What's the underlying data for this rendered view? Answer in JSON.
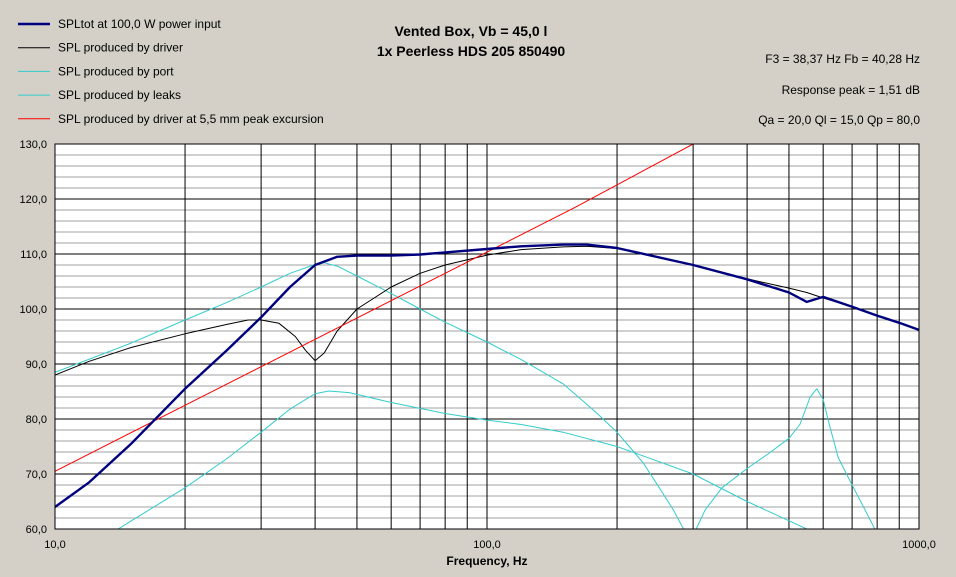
{
  "chart_data": {
    "type": "line",
    "title": "Vented Box, Vb = 45,0 l",
    "subtitle": "1x Peerless HDS 205 850490",
    "xlabel": "Frequency, Hz",
    "ylabel": "",
    "x_scale": "log",
    "xlim": [
      10,
      1000
    ],
    "ylim": [
      60,
      130
    ],
    "x_ticks": [
      {
        "value": 10,
        "label": "10,0"
      },
      {
        "value": 100,
        "label": "100,0"
      },
      {
        "value": 1000,
        "label": "1000,0"
      }
    ],
    "y_ticks": [
      {
        "value": 60,
        "label": "60,0"
      },
      {
        "value": 70,
        "label": "70,0"
      },
      {
        "value": 80,
        "label": "80,0"
      },
      {
        "value": 90,
        "label": "90,0"
      },
      {
        "value": 100,
        "label": "100,0"
      },
      {
        "value": 110,
        "label": "110,0"
      },
      {
        "value": 120,
        "label": "120,0"
      },
      {
        "value": 130,
        "label": "130,0"
      }
    ],
    "grid": true,
    "legend_position": "top-left",
    "info": [
      "F3 = 38,37 Hz  Fb = 40,28 Hz",
      "Response peak = 1,51 dB",
      "Qa = 20,0  Ql = 15,0  Qp = 80,0"
    ],
    "series": [
      {
        "name": "SPLtot at 100,0 W power input",
        "color": "#00007f",
        "thick": true,
        "points": [
          [
            10,
            64
          ],
          [
            12,
            68.5
          ],
          [
            15,
            75.5
          ],
          [
            20,
            85.5
          ],
          [
            25,
            92.5
          ],
          [
            30,
            98.5
          ],
          [
            35,
            104
          ],
          [
            40,
            108
          ],
          [
            45,
            109.5
          ],
          [
            50,
            109.7
          ],
          [
            60,
            109.7
          ],
          [
            70,
            109.9
          ],
          [
            80,
            110.3
          ],
          [
            100,
            110.9
          ],
          [
            120,
            111.4
          ],
          [
            150,
            111.7
          ],
          [
            170,
            111.7
          ],
          [
            200,
            111.1
          ],
          [
            300,
            108
          ],
          [
            400,
            105.4
          ],
          [
            500,
            103
          ],
          [
            550,
            101.3
          ],
          [
            600,
            102.2
          ],
          [
            700,
            100.4
          ],
          [
            800,
            98.8
          ],
          [
            900,
            97.5
          ],
          [
            1000,
            96.2
          ]
        ]
      },
      {
        "name": "SPL produced by driver",
        "color": "#000000",
        "thick": false,
        "points": [
          [
            10,
            88
          ],
          [
            12,
            90.5
          ],
          [
            15,
            93
          ],
          [
            20,
            95.5
          ],
          [
            25,
            97.2
          ],
          [
            28,
            98
          ],
          [
            30,
            98
          ],
          [
            33,
            97.4
          ],
          [
            36,
            95
          ],
          [
            38,
            92.5
          ],
          [
            40,
            90.6
          ],
          [
            42,
            92
          ],
          [
            45,
            96
          ],
          [
            50,
            100
          ],
          [
            60,
            104
          ],
          [
            70,
            106.5
          ],
          [
            80,
            108
          ],
          [
            100,
            109.8
          ],
          [
            120,
            110.8
          ],
          [
            150,
            111.3
          ],
          [
            170,
            111.4
          ],
          [
            200,
            111
          ],
          [
            300,
            108
          ],
          [
            400,
            105.5
          ],
          [
            500,
            103.8
          ],
          [
            550,
            103
          ],
          [
            600,
            102
          ],
          [
            700,
            100.4
          ],
          [
            800,
            98.8
          ],
          [
            900,
            97.5
          ],
          [
            1000,
            96.2
          ]
        ]
      },
      {
        "name": "SPL produced by port",
        "color": "#33cccc",
        "thick": false,
        "points": [
          [
            10,
            88.5
          ],
          [
            15,
            93.8
          ],
          [
            20,
            98
          ],
          [
            25,
            101.2
          ],
          [
            30,
            104
          ],
          [
            35,
            106.5
          ],
          [
            40,
            108.1
          ],
          [
            42,
            108.4
          ],
          [
            45,
            107.8
          ],
          [
            50,
            106
          ],
          [
            60,
            102.8
          ],
          [
            70,
            100
          ],
          [
            80,
            97.6
          ],
          [
            100,
            94
          ],
          [
            120,
            90.8
          ],
          [
            150,
            86.4
          ],
          [
            180,
            81
          ],
          [
            200,
            77.6
          ],
          [
            230,
            72
          ],
          [
            250,
            67.6
          ],
          [
            270,
            63.5
          ],
          [
            285,
            60
          ]
        ]
      },
      {
        "name": "SPL produced by leaks",
        "color": "#33cccc",
        "thick": false,
        "points": [
          [
            14,
            60
          ],
          [
            20,
            67.5
          ],
          [
            25,
            72.8
          ],
          [
            30,
            77.6
          ],
          [
            35,
            81.8
          ],
          [
            40,
            84.6
          ],
          [
            43,
            85.1
          ],
          [
            48,
            84.8
          ],
          [
            60,
            83
          ],
          [
            80,
            81
          ],
          [
            100,
            79.8
          ],
          [
            120,
            79
          ],
          [
            150,
            77.6
          ],
          [
            200,
            75
          ],
          [
            300,
            70
          ],
          [
            400,
            65
          ],
          [
            500,
            61.5
          ],
          [
            550,
            60
          ]
        ]
      },
      {
        "name": "",
        "color": "#33cccc",
        "thick": false,
        "points": [
          [
            305,
            60
          ],
          [
            320,
            63.5
          ],
          [
            350,
            67.5
          ],
          [
            400,
            71
          ],
          [
            450,
            73.8
          ],
          [
            500,
            76.5
          ],
          [
            530,
            79
          ],
          [
            560,
            84
          ],
          [
            580,
            85.5
          ],
          [
            600,
            83.5
          ],
          [
            620,
            79
          ],
          [
            650,
            73
          ],
          [
            700,
            68
          ],
          [
            750,
            63.5
          ],
          [
            790,
            60
          ]
        ]
      },
      {
        "name": "SPL produced by driver at 5,5 mm peak excursion",
        "color": "#ff0000",
        "thick": false,
        "points": [
          [
            10,
            70.5
          ],
          [
            20,
            82.5
          ],
          [
            40,
            94.5
          ],
          [
            80,
            106.5
          ],
          [
            160,
            118.5
          ],
          [
            300,
            130
          ]
        ]
      }
    ]
  }
}
